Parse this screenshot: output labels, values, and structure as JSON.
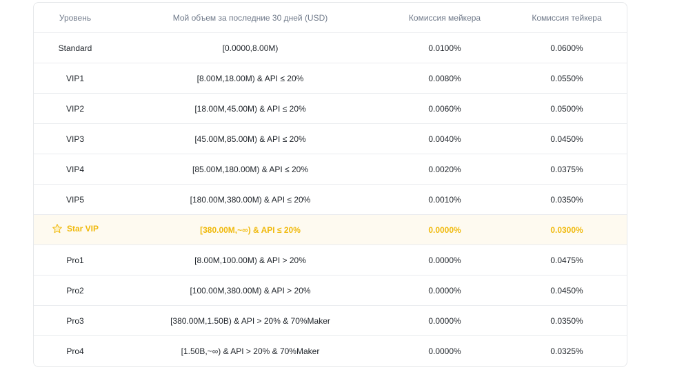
{
  "table": {
    "headers": {
      "level": "Уровень",
      "volume": "Мой объем за последние 30 дней (USD)",
      "maker": "Комиссия мейкера",
      "taker": "Комиссия тейкера"
    },
    "rows": [
      {
        "level": "Standard",
        "volume": "[0.0000,8.00M)",
        "maker": "0.0100%",
        "taker": "0.0600%"
      },
      {
        "level": "VIP1",
        "volume": "[8.00M,18.00M) & API ≤ 20%",
        "maker": "0.0080%",
        "taker": "0.0550%"
      },
      {
        "level": "VIP2",
        "volume": "[18.00M,45.00M) & API ≤ 20%",
        "maker": "0.0060%",
        "taker": "0.0500%"
      },
      {
        "level": "VIP3",
        "volume": "[45.00M,85.00M) & API ≤ 20%",
        "maker": "0.0040%",
        "taker": "0.0450%"
      },
      {
        "level": "VIP4",
        "volume": "[85.00M,180.00M) & API ≤ 20%",
        "maker": "0.0020%",
        "taker": "0.0375%"
      },
      {
        "level": "VIP5",
        "volume": "[180.00M,380.00M) & API ≤ 20%",
        "maker": "0.0010%",
        "taker": "0.0350%"
      },
      {
        "level": "Star VIP",
        "volume": "[380.00M,~∞) & API ≤ 20%",
        "maker": "0.0000%",
        "taker": "0.0300%",
        "highlight": true,
        "icon": "star-icon"
      },
      {
        "level": "Pro1",
        "volume": "[8.00M,100.00M) & API > 20%",
        "maker": "0.0000%",
        "taker": "0.0475%"
      },
      {
        "level": "Pro2",
        "volume": "[100.00M,380.00M) & API > 20%",
        "maker": "0.0000%",
        "taker": "0.0450%"
      },
      {
        "level": "Pro3",
        "volume": "[380.00M,1.50B) & API > 20% & 70%Maker",
        "maker": "0.0000%",
        "taker": "0.0350%"
      },
      {
        "level": "Pro4",
        "volume": "[1.50B,~∞) & API > 20% & 70%Maker",
        "maker": "0.0000%",
        "taker": "0.0325%"
      }
    ]
  },
  "colors": {
    "highlight_text": "#f0b90b",
    "highlight_bg": "#fefaf0",
    "header_text": "#707a8a",
    "body_text": "#1e2329",
    "border": "#eaecef"
  }
}
